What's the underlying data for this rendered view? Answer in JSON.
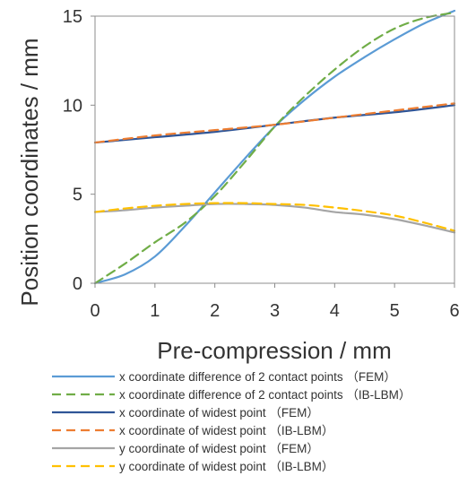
{
  "chart_data": {
    "type": "line",
    "title": "",
    "xlabel": "Pre-compression / mm",
    "ylabel": "Position coordinates / mm",
    "xlim": [
      0,
      6
    ],
    "ylim": [
      0,
      15
    ],
    "xticks": [
      "0",
      "1",
      "2",
      "3",
      "4",
      "5",
      "6"
    ],
    "yticks": [
      "0",
      "5",
      "10",
      "15"
    ],
    "grid": false,
    "legend_position": "bottom",
    "series": [
      {
        "name": "x coordinate difference of 2 contact points （FEM）",
        "color": "#5b9bd5",
        "dash": "solid",
        "x": [
          0,
          0.5,
          1,
          1.5,
          2,
          2.5,
          3,
          3.5,
          4,
          4.5,
          5,
          5.5,
          6
        ],
        "y": [
          0,
          0.5,
          1.5,
          3.2,
          5.1,
          7.0,
          8.8,
          10.3,
          11.6,
          12.7,
          13.7,
          14.6,
          15.3
        ]
      },
      {
        "name": "x coordinate difference of 2 contact points （IB-LBM）",
        "color": "#70ad47",
        "dash": "dashed",
        "x": [
          0,
          0.5,
          1,
          1.5,
          2,
          2.5,
          3,
          3.5,
          4,
          4.5,
          5,
          5.5,
          6
        ],
        "y": [
          0,
          1.1,
          2.3,
          3.4,
          4.9,
          6.8,
          8.8,
          10.5,
          12.0,
          13.3,
          14.3,
          14.9,
          15.2
        ]
      },
      {
        "name": "x coordinate of widest point （FEM）",
        "color": "#2f5597",
        "dash": "solid",
        "x": [
          0,
          1,
          2,
          3,
          4,
          5,
          6
        ],
        "y": [
          7.9,
          8.2,
          8.5,
          8.9,
          9.3,
          9.6,
          10.0
        ]
      },
      {
        "name": "x coordinate of widest point （IB-LBM）",
        "color": "#ed7d31",
        "dash": "dashed",
        "x": [
          0,
          1,
          2,
          3,
          4,
          5,
          6
        ],
        "y": [
          7.9,
          8.3,
          8.6,
          8.9,
          9.3,
          9.7,
          10.1
        ]
      },
      {
        "name": "y coordinate of widest point （FEM）",
        "color": "#a5a5a5",
        "dash": "solid",
        "x": [
          0,
          0.5,
          1,
          1.5,
          2,
          2.5,
          3,
          3.5,
          4,
          4.5,
          5,
          5.5,
          6
        ],
        "y": [
          4.0,
          4.1,
          4.25,
          4.35,
          4.45,
          4.45,
          4.4,
          4.25,
          4.0,
          3.85,
          3.6,
          3.25,
          2.85
        ]
      },
      {
        "name": "y coordinate of widest point （IB-LBM）",
        "color": "#ffc000",
        "dash": "dashed",
        "x": [
          0,
          0.5,
          1,
          1.5,
          2,
          2.5,
          3,
          3.5,
          4,
          4.5,
          5,
          5.5,
          6
        ],
        "y": [
          4.0,
          4.2,
          4.35,
          4.45,
          4.5,
          4.5,
          4.45,
          4.4,
          4.25,
          4.05,
          3.8,
          3.4,
          2.95
        ]
      }
    ]
  }
}
